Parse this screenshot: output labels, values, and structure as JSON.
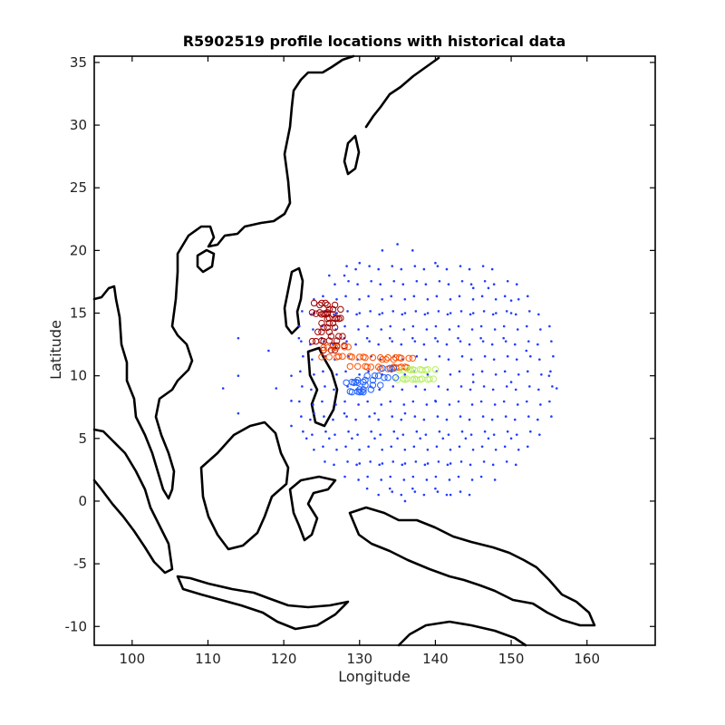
{
  "chart_data": {
    "type": "scatter",
    "title": "R5902519 profile locations with historical data",
    "xlabel": "Longitude",
    "ylabel": "Latitude",
    "xlim": [
      95,
      169
    ],
    "ylim": [
      -11.5,
      35.5
    ],
    "xticks": [
      100,
      110,
      120,
      130,
      140,
      150,
      160
    ],
    "yticks": [
      -10,
      -5,
      0,
      5,
      10,
      15,
      20,
      25,
      30,
      35
    ],
    "colors": {
      "historical": "#1f3cff",
      "float_recent": "#a00000",
      "float_mid": "#ff5000",
      "float_late": "#b8f060",
      "float_end": "#2060ff",
      "coast": "#000000"
    },
    "historical_points_sample": [
      [
        126,
        18
      ],
      [
        128,
        18
      ],
      [
        130,
        19
      ],
      [
        133,
        20
      ],
      [
        135,
        20.5
      ],
      [
        137,
        20
      ],
      [
        140,
        19
      ],
      [
        145,
        17
      ],
      [
        147,
        17
      ],
      [
        150,
        16
      ],
      [
        124,
        15
      ],
      [
        127,
        15
      ],
      [
        130,
        15
      ],
      [
        133,
        15
      ],
      [
        136,
        15
      ],
      [
        139,
        15
      ],
      [
        142,
        15
      ],
      [
        145,
        15
      ],
      [
        148,
        15
      ],
      [
        150,
        15
      ],
      [
        122,
        13
      ],
      [
        125,
        13
      ],
      [
        128,
        13
      ],
      [
        131,
        13
      ],
      [
        134,
        13
      ],
      [
        137,
        13
      ],
      [
        140,
        13
      ],
      [
        143,
        13
      ],
      [
        146,
        13
      ],
      [
        149,
        13
      ],
      [
        152,
        12
      ],
      [
        155,
        10
      ],
      [
        156,
        9
      ],
      [
        150,
        9.5
      ],
      [
        145,
        9.5
      ],
      [
        140,
        8
      ],
      [
        136,
        7
      ],
      [
        132,
        7
      ],
      [
        128,
        7
      ],
      [
        124,
        7
      ],
      [
        121,
        10
      ],
      [
        121,
        8
      ],
      [
        121,
        6
      ],
      [
        123,
        5
      ],
      [
        126,
        5
      ],
      [
        129,
        5
      ],
      [
        132,
        5
      ],
      [
        135,
        5
      ],
      [
        138,
        5
      ],
      [
        141,
        5
      ],
      [
        144,
        5
      ],
      [
        147,
        5
      ],
      [
        150,
        5
      ],
      [
        130,
        3
      ],
      [
        133,
        3
      ],
      [
        136,
        3
      ],
      [
        139,
        3
      ],
      [
        142,
        3
      ],
      [
        131,
        1
      ],
      [
        134,
        1
      ],
      [
        137,
        1
      ],
      [
        140,
        1
      ],
      [
        136,
        0
      ],
      [
        142,
        0.5
      ],
      [
        114,
        13
      ],
      [
        114,
        10
      ],
      [
        114,
        7
      ],
      [
        112,
        9
      ],
      [
        118,
        12
      ],
      [
        119,
        9
      ]
    ],
    "float_track_sample": [
      [
        125,
        15.8
      ],
      [
        126,
        15.5
      ],
      [
        127,
        15
      ],
      [
        125.5,
        14.5
      ],
      [
        126.5,
        14
      ],
      [
        125,
        13.5
      ],
      [
        127,
        13
      ],
      [
        126,
        12.5
      ],
      [
        126,
        11.8
      ],
      [
        128,
        11.7
      ],
      [
        130,
        11.5
      ],
      [
        132,
        11.3
      ],
      [
        134,
        11
      ],
      [
        135,
        11
      ],
      [
        136,
        10.8
      ],
      [
        137,
        10.5
      ],
      [
        138,
        10.3
      ],
      [
        139,
        10.2
      ],
      [
        136,
        10
      ],
      [
        134,
        10
      ],
      [
        132,
        10
      ],
      [
        131,
        9.5
      ],
      [
        130,
        9.2
      ],
      [
        129.5,
        9
      ]
    ]
  }
}
